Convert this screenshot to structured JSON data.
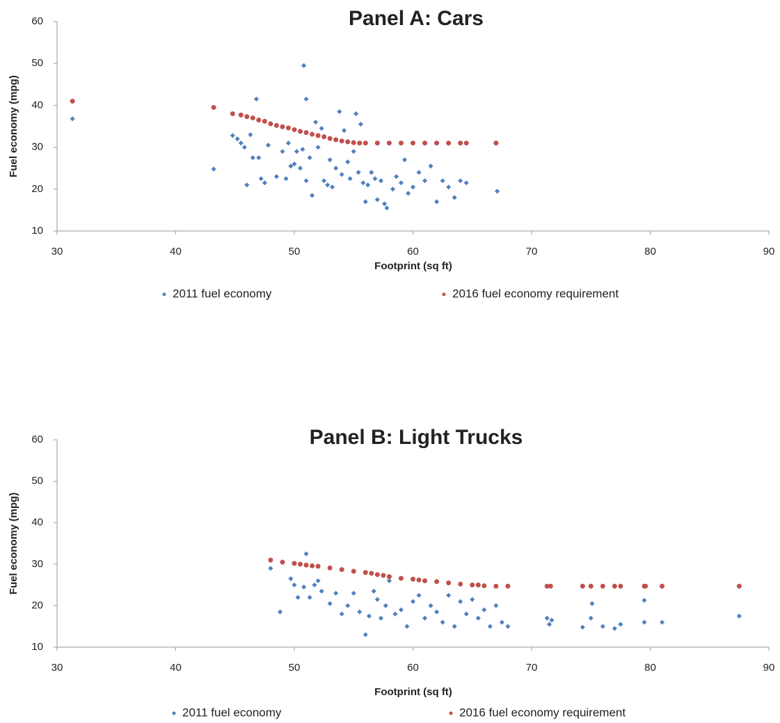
{
  "chart_data": [
    {
      "type": "scatter",
      "title": "Panel A: Cars",
      "xlabel": "Footprint (sq ft)",
      "ylabel": "Fuel economy (mpg)",
      "xlim": [
        30,
        90
      ],
      "ylim": [
        10,
        60
      ],
      "xticks": [
        30,
        40,
        50,
        60,
        70,
        80,
        90
      ],
      "yticks": [
        10,
        20,
        30,
        40,
        50,
        60
      ],
      "series": [
        {
          "name": "2011 fuel economy",
          "color": "#4f81bd",
          "x": [
            31.3,
            43.2,
            44.8,
            45.2,
            45.5,
            45.8,
            46,
            46.3,
            46.5,
            46.8,
            47,
            47.2,
            47.5,
            47.8,
            48.5,
            49,
            49.3,
            49.5,
            49.7,
            50,
            50.2,
            50.5,
            50.7,
            50.8,
            51,
            51,
            51.3,
            51.5,
            51.8,
            52,
            52.3,
            52.5,
            52.8,
            53,
            53.2,
            53.5,
            53.8,
            54,
            54.2,
            54.5,
            54.7,
            55,
            55.2,
            55.4,
            55.6,
            55.8,
            56,
            56.2,
            56.5,
            56.8,
            57,
            57.3,
            57.6,
            57.8,
            58.3,
            58.6,
            59,
            59.3,
            59.6,
            60,
            60.5,
            61,
            61.5,
            62,
            62.5,
            63,
            63.5,
            64,
            64.5,
            67.1
          ],
          "y": [
            36.8,
            24.8,
            32.8,
            32,
            31,
            30,
            21,
            33,
            27.5,
            41.5,
            27.5,
            22.5,
            21.5,
            30.5,
            23,
            29,
            22.5,
            31,
            25.5,
            26,
            29,
            25,
            29.5,
            49.5,
            41.5,
            22,
            27.5,
            18.5,
            36,
            30,
            34.5,
            22,
            21,
            27,
            20.5,
            25,
            38.5,
            23.5,
            34,
            26.5,
            22.5,
            29,
            38,
            24,
            35.5,
            21.5,
            17,
            21,
            24,
            22.5,
            17.5,
            22,
            16.5,
            15.5,
            20,
            23,
            21.5,
            27,
            19,
            20.5,
            24,
            22,
            25.5,
            17,
            22,
            20.5,
            18,
            22,
            21.5,
            19.5
          ]
        },
        {
          "name": "2016 fuel economy requirement",
          "color": "#c0504d",
          "x": [
            31.3,
            43.2,
            44.8,
            45.5,
            46,
            46.5,
            47,
            47.5,
            48,
            48.5,
            49,
            49.5,
            50,
            50.5,
            51,
            51.5,
            52,
            52.5,
            53,
            53.5,
            54,
            54.5,
            55,
            55.5,
            56,
            57,
            58,
            59,
            60,
            61,
            62,
            63,
            64,
            64.5,
            67
          ],
          "y": [
            41,
            39.5,
            38,
            37.7,
            37.3,
            37,
            36.5,
            36.2,
            35.6,
            35.2,
            34.9,
            34.6,
            34.2,
            33.8,
            33.5,
            33.1,
            32.8,
            32.5,
            32.1,
            31.8,
            31.5,
            31.3,
            31.1,
            31,
            31,
            31,
            31,
            31,
            31,
            31,
            31,
            31,
            31,
            31,
            31
          ]
        }
      ]
    },
    {
      "type": "scatter",
      "title": "Panel B: Light Trucks",
      "xlabel": "Footprint (sq ft)",
      "ylabel": "Fuel economy (mpg)",
      "xlim": [
        30,
        90
      ],
      "ylim": [
        10,
        60
      ],
      "xticks": [
        30,
        40,
        50,
        60,
        70,
        80,
        90
      ],
      "yticks": [
        10,
        20,
        30,
        40,
        50,
        60
      ],
      "series": [
        {
          "name": "2011 fuel economy",
          "color": "#4f81bd",
          "x": [
            48,
            48.8,
            49.7,
            50,
            50.3,
            50.8,
            51,
            51.3,
            51.7,
            52,
            52.3,
            53,
            53.5,
            54,
            54.5,
            55,
            55.5,
            56,
            56.3,
            56.7,
            57,
            57.3,
            57.7,
            58,
            58.5,
            59,
            59.5,
            60,
            60.5,
            61,
            61.5,
            62,
            62.5,
            63,
            63.5,
            64,
            64.5,
            65,
            65.5,
            66,
            66.5,
            67,
            67.5,
            68,
            71.3,
            71.5,
            71.7,
            74.3,
            75,
            75.1,
            76,
            77,
            77.5,
            79.5,
            79.5,
            81,
            87.5
          ],
          "y": [
            29,
            18.5,
            26.5,
            25,
            22,
            24.5,
            32.5,
            22,
            25,
            26,
            23.5,
            20.5,
            23,
            18,
            20,
            23,
            18.5,
            13,
            17.5,
            23.5,
            21.5,
            17,
            20,
            26,
            18,
            19,
            15,
            21,
            22.5,
            17,
            20,
            18.5,
            16,
            22.5,
            15,
            21,
            18,
            21.5,
            17,
            19,
            15,
            20,
            16,
            15,
            17,
            15.5,
            16.5,
            14.8,
            17,
            20.5,
            15,
            14.5,
            15.5,
            16,
            21.3,
            16,
            17.5
          ]
        },
        {
          "name": "2016 fuel economy requirement",
          "color": "#c0504d",
          "x": [
            48,
            49,
            50,
            50.5,
            51,
            51.5,
            52,
            53,
            54,
            55,
            56,
            56.5,
            57,
            57.5,
            58,
            59,
            60,
            60.5,
            61,
            62,
            63,
            64,
            65,
            65.5,
            66,
            67,
            68,
            71.3,
            71.6,
            74.3,
            75,
            76,
            77,
            77.5,
            79.5,
            79.6,
            81,
            87.5
          ],
          "y": [
            31,
            30.5,
            30.2,
            30,
            29.8,
            29.6,
            29.5,
            29.1,
            28.7,
            28.3,
            28,
            27.8,
            27.5,
            27.3,
            27,
            26.6,
            26.4,
            26.2,
            26,
            25.8,
            25.5,
            25.2,
            25,
            25,
            24.8,
            24.7,
            24.7,
            24.7,
            24.7,
            24.7,
            24.7,
            24.7,
            24.7,
            24.7,
            24.7,
            24.7,
            24.7,
            24.7
          ]
        }
      ]
    }
  ]
}
